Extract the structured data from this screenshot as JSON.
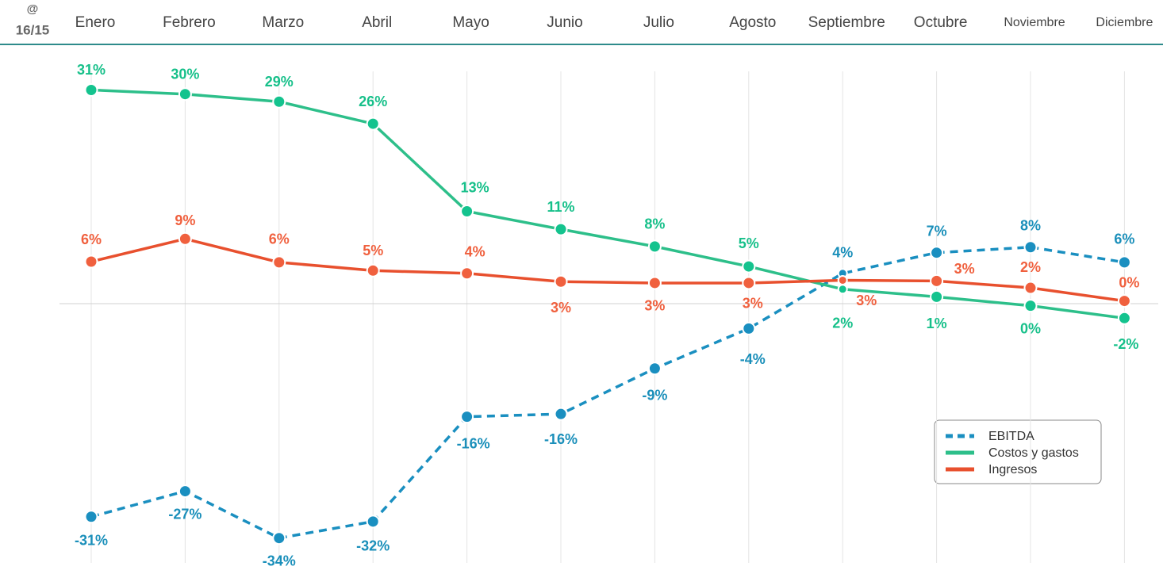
{
  "header": {
    "symbol": "@",
    "period": "16/15"
  },
  "chart_data": {
    "type": "line",
    "categories": [
      "Enero",
      "Febrero",
      "Marzo",
      "Abril",
      "Mayo",
      "Junio",
      "Julio",
      "Agosto",
      "Septiembre",
      "Octubre",
      "Noviembre",
      "Diciembre"
    ],
    "series": [
      {
        "name": "EBITDA",
        "color": "#1a8fc0",
        "dashed": true,
        "values": [
          -30.9,
          -27.2,
          -34.0,
          -31.6,
          -16.4,
          -16.0,
          -9.4,
          -3.6,
          4.4,
          7.4,
          8.2,
          6.0
        ],
        "value_labels": [
          "-31%",
          "-27%",
          "-34%",
          "-32%",
          "-16%",
          "-16%",
          "-9%",
          "-4%",
          "4%",
          "7%",
          "8%",
          "6%"
        ]
      },
      {
        "name": "Costos y gastos",
        "color": "#2dbf8a",
        "dashed": false,
        "values": [
          31.0,
          30.4,
          29.3,
          26.1,
          13.4,
          10.8,
          8.3,
          5.4,
          2.1,
          1.0,
          -0.3,
          -2.1
        ],
        "value_labels": [
          "31%",
          "30%",
          "29%",
          "26%",
          "13%",
          "11%",
          "8%",
          "5%",
          "2%",
          "1%",
          "0%",
          "-2%"
        ]
      },
      {
        "name": "Ingresos",
        "color": "#e8502e",
        "dashed": false,
        "values": [
          6.1,
          9.4,
          6.0,
          4.8,
          4.4,
          3.2,
          3.0,
          3.0,
          3.4,
          3.3,
          2.3,
          0.4
        ],
        "value_labels": [
          "6%",
          "9%",
          "6%",
          "5%",
          "4%",
          "3%",
          "3%",
          "3%",
          "3%",
          "3%",
          "2%",
          "0%"
        ]
      }
    ],
    "ylim": [
      -37.6,
      33.7
    ],
    "grid": true,
    "legend": "lower right"
  }
}
